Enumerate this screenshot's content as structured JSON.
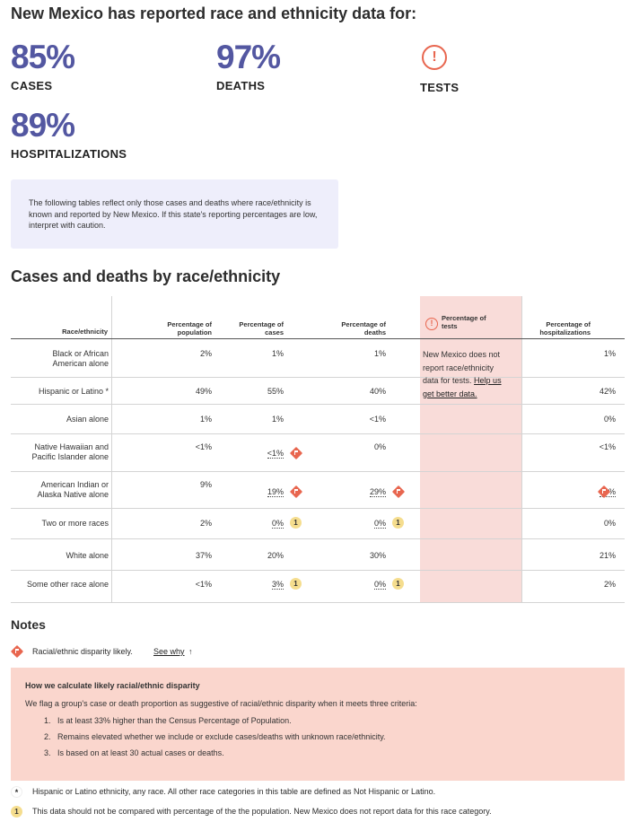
{
  "page_title": "New Mexico has reported race and ethnicity data for:",
  "metrics": {
    "cases": {
      "value": "85%",
      "label": "CASES"
    },
    "deaths": {
      "value": "97%",
      "label": "DEATHS"
    },
    "tests": {
      "icon": "warning-circle-icon",
      "label": "TESTS"
    },
    "hospitalizations": {
      "value": "89%",
      "label": "HOSPITALIZATIONS"
    }
  },
  "info_note": "The following tables reflect only those cases and deaths where race/ethnicity is known and reported by New Mexico. If this state's reporting percentages are low, interpret with caution.",
  "section_title": "Cases and deaths by race/ethnicity",
  "table": {
    "headers": {
      "race": "Race/ethnicity",
      "population": [
        "Percentage of",
        "population"
      ],
      "cases": [
        "Percentage of",
        "cases"
      ],
      "deaths": [
        "Percentage of",
        "deaths"
      ],
      "tests": [
        "Percentage of",
        "tests"
      ],
      "hospitalizations": [
        "Percentage of",
        "hospitalizations"
      ]
    },
    "tests_note": "New Mexico does not report race/ethnicity data for tests.",
    "tests_link": "Help us get better data.",
    "rows": [
      {
        "race": [
          "Black or African",
          "American alone"
        ],
        "population": "2%",
        "cases": "1%",
        "deaths": "1%",
        "hospitalizations": "1%"
      },
      {
        "race": [
          "Hispanic or Latino *"
        ],
        "population": "49%",
        "cases": "55%",
        "deaths": "40%",
        "hospitalizations": "42%"
      },
      {
        "race": [
          "Asian alone"
        ],
        "population": "1%",
        "cases": "1%",
        "deaths": "<1%",
        "hospitalizations": "0%"
      },
      {
        "race": [
          "Native Hawaiian and",
          "Pacific Islander alone"
        ],
        "population": "<1%",
        "cases": "<1%",
        "deaths": "0%",
        "hospitalizations": "<1%"
      },
      {
        "race": [
          "American Indian or",
          "Alaska Native alone"
        ],
        "population": "9%",
        "cases": "19%",
        "deaths": "29%",
        "hospitalizations": "34%"
      },
      {
        "race": [
          "Two or more races"
        ],
        "population": "2%",
        "cases": "0%",
        "deaths": "0%",
        "hospitalizations": "0%"
      },
      {
        "race": [
          "White alone"
        ],
        "population": "37%",
        "cases": "20%",
        "deaths": "30%",
        "hospitalizations": "21%"
      },
      {
        "race": [
          "Some other race alone"
        ],
        "population": "<1%",
        "cases": "3%",
        "deaths": "0%",
        "hospitalizations": "2%"
      }
    ],
    "badge_label": "1"
  },
  "notes": {
    "title": "Notes",
    "disparity_legend": "Racial/ethnic disparity likely.",
    "see_why": "See why",
    "see_why_arrow": "↑",
    "calc": {
      "title": "How we calculate likely racial/ethnic disparity",
      "intro": "We flag a group's case or death proportion as suggestive of racial/ethnic disparity when it meets three criteria:",
      "criteria": [
        {
          "num": "1.",
          "text": "Is at least 33% higher than the Census Percentage of Population."
        },
        {
          "num": "2.",
          "text": "Remains elevated whether we include or exclude cases/deaths with unknown race/ethnicity."
        },
        {
          "num": "3.",
          "text": "Is based on at least 30 actual cases or deaths."
        }
      ]
    },
    "footnotes": {
      "star_symbol": "*",
      "star_text": "Hispanic or Latino ethnicity, any race. All other race categories in this table are defined as Not Hispanic or Latino.",
      "one_symbol": "1",
      "one_text": "This data should not be compared with percentage of the the population. New Mexico does not report data for this race category."
    }
  },
  "colors": {
    "metric_value": "#5357a1",
    "warning": "#e8664f",
    "tests_column_bg": "#f9dcd9",
    "calc_box_bg": "#fad6cd",
    "info_box_bg": "#eeeefb",
    "badge_bg": "#f5dd8e"
  }
}
